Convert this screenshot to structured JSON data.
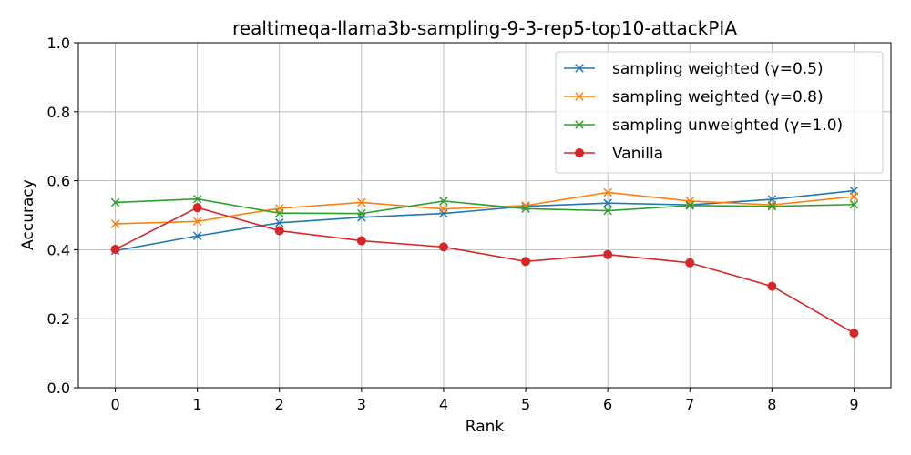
{
  "chart_data": {
    "type": "line",
    "title": "realtimeqa-llama3b-sampling-9-3-rep5-top10-attackPIA",
    "xlabel": "Rank",
    "ylabel": "Accuracy",
    "x": [
      0,
      1,
      2,
      3,
      4,
      5,
      6,
      7,
      8,
      9
    ],
    "xlim": [
      -0.45,
      9.45
    ],
    "ylim": [
      0.0,
      1.0
    ],
    "yticks": [
      0.0,
      0.2,
      0.4,
      0.6,
      0.8,
      1.0
    ],
    "ytick_labels": [
      "0.0",
      "0.2",
      "0.4",
      "0.6",
      "0.8",
      "1.0"
    ],
    "xtick_labels": [
      "0",
      "1",
      "2",
      "3",
      "4",
      "5",
      "6",
      "7",
      "8",
      "9"
    ],
    "grid": true,
    "legend_position": "top-right",
    "series": [
      {
        "name": "sampling weighted (γ=0.5)",
        "color": "#1f77b4",
        "marker": "x",
        "values": [
          0.397,
          0.44,
          0.478,
          0.494,
          0.505,
          0.526,
          0.535,
          0.53,
          0.546,
          0.571
        ]
      },
      {
        "name": "sampling weighted (γ=0.8)",
        "color": "#ff7f0e",
        "marker": "x",
        "values": [
          0.475,
          0.482,
          0.52,
          0.537,
          0.518,
          0.528,
          0.566,
          0.541,
          0.53,
          0.554
        ]
      },
      {
        "name": "sampling unweighted (γ=1.0)",
        "color": "#2ca02c",
        "marker": "x",
        "values": [
          0.537,
          0.547,
          0.506,
          0.505,
          0.541,
          0.519,
          0.513,
          0.528,
          0.526,
          0.531
        ]
      },
      {
        "name": "Vanilla",
        "color": "#d62728",
        "marker": "o",
        "values": [
          0.401,
          0.522,
          0.455,
          0.426,
          0.408,
          0.366,
          0.386,
          0.362,
          0.294,
          0.158
        ]
      }
    ]
  }
}
